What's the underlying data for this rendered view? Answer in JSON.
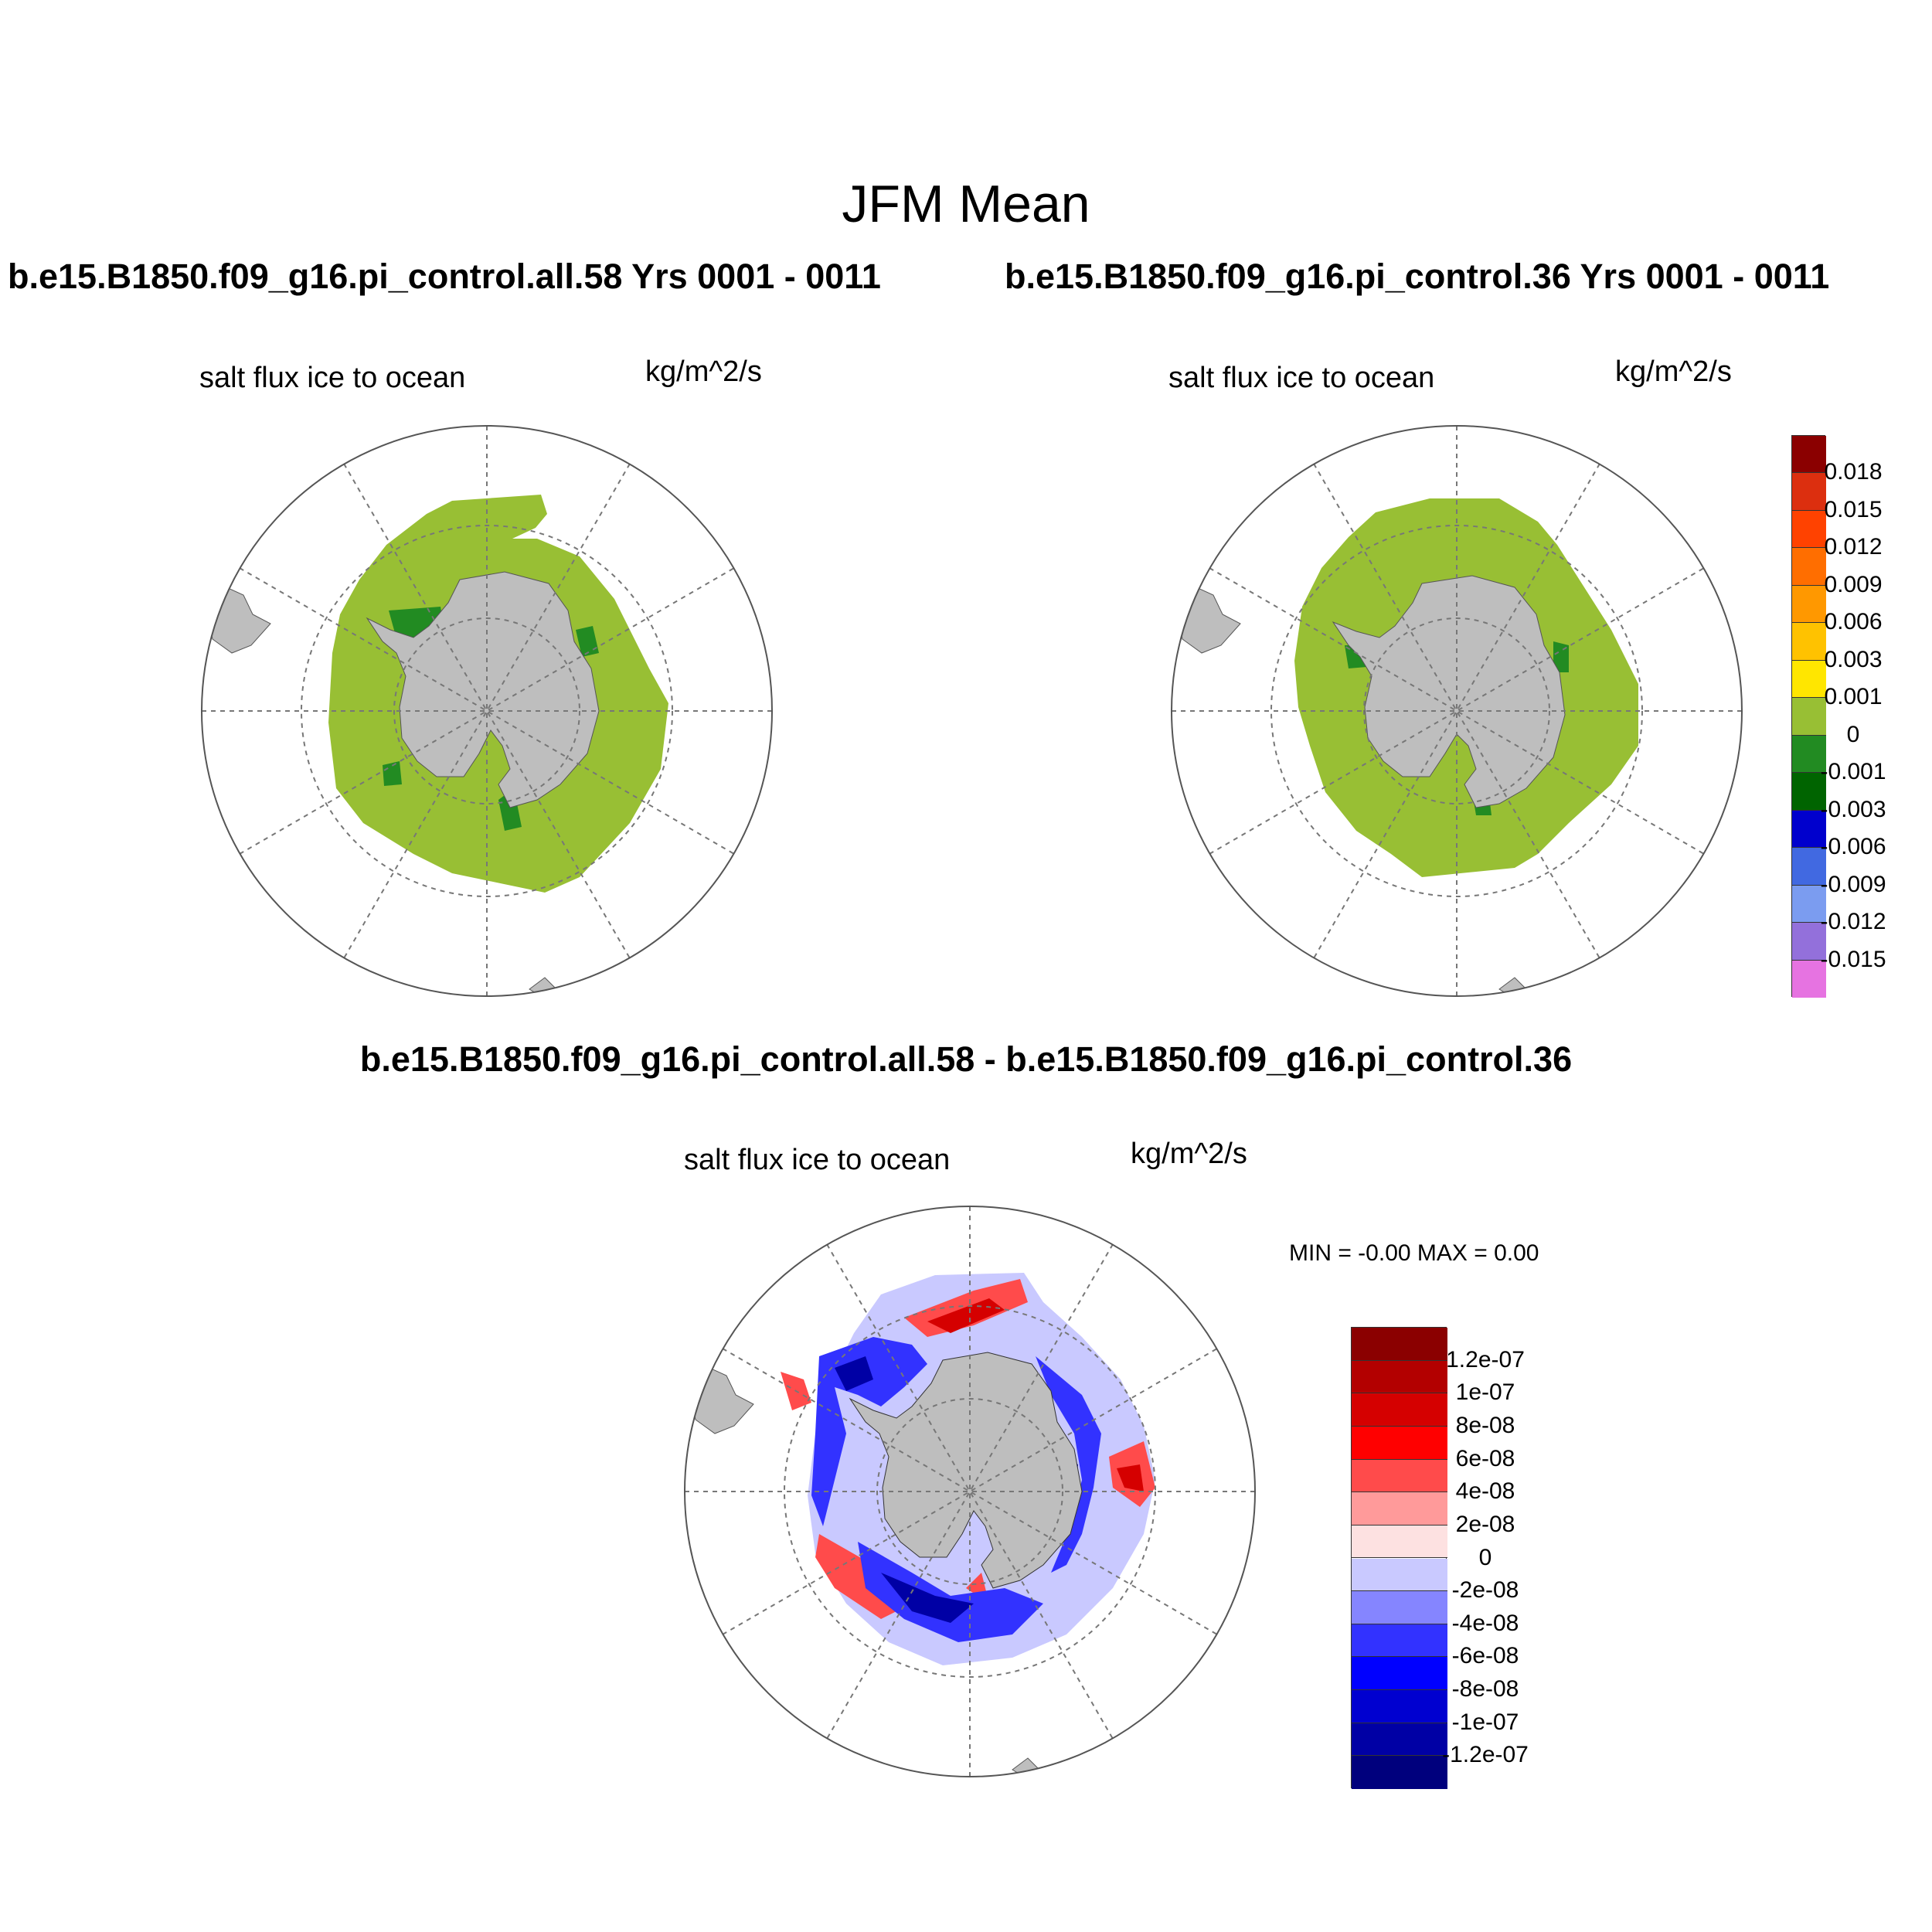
{
  "figure": {
    "title": "JFM Mean",
    "case_title_left": "b.e15.B1850.f09_g16.pi_control.all.58  Yrs 0001 - 0011",
    "case_title_right": "b.e15.B1850.f09_g16.pi_control.36  Yrs 0001 - 0011",
    "diff_title": "b.e15.B1850.f09_g16.pi_control.all.58 - b.e15.B1850.f09_g16.pi_control.36"
  },
  "panels": [
    {
      "variable": "salt flux ice to ocean",
      "units": "kg/m^2/s"
    },
    {
      "variable": "salt flux ice to ocean",
      "units": "kg/m^2/s"
    },
    {
      "variable": "salt flux ice to ocean",
      "units": "kg/m^2/s"
    }
  ],
  "diff_stats": "MIN =  -0.00 MAX =   0.00",
  "colorbar_top": {
    "labels": [
      "0.018",
      "0.015",
      "0.012",
      "0.009",
      "0.006",
      "0.003",
      "0.001",
      "0",
      "-0.001",
      "-0.003",
      "-0.006",
      "-0.009",
      "-0.012",
      "-0.015"
    ],
    "colors": [
      "#8b0000",
      "#dc2f0f",
      "#ff4200",
      "#ff6e00",
      "#ff9800",
      "#ffc200",
      "#ffe600",
      "#98bf34",
      "#228b22",
      "#006400",
      "#0000cd",
      "#4169e1",
      "#7b9cf0",
      "#9370db",
      "#e673e1"
    ]
  },
  "colorbar_diff": {
    "labels": [
      "1.2e-07",
      "1e-07",
      "8e-08",
      "6e-08",
      "4e-08",
      "2e-08",
      "0",
      "-2e-08",
      "-4e-08",
      "-6e-08",
      "-8e-08",
      "-1e-07",
      "-1.2e-07"
    ],
    "colors": [
      "#8b0000",
      "#b30000",
      "#d50000",
      "#ff0000",
      "#ff4b4b",
      "#ff9a9a",
      "#fde1e1",
      "#c9c9ff",
      "#8585ff",
      "#3232ff",
      "#0000ff",
      "#0000d0",
      "#0000a5",
      "#00007d"
    ]
  },
  "map_colors": {
    "land": "#bebebe",
    "ice_zero": "#98bf34",
    "ice_neg": "#228b22"
  }
}
